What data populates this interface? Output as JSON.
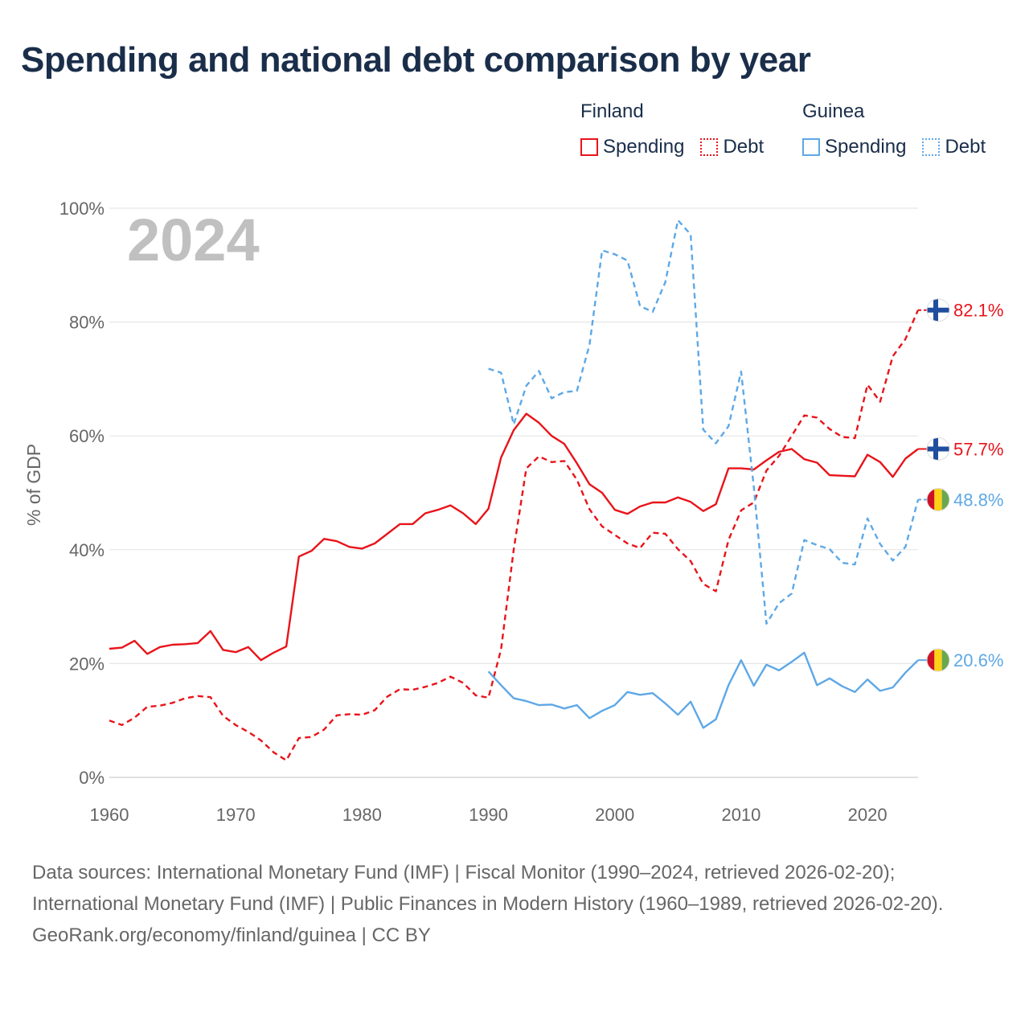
{
  "title": "Spending and national debt comparison by year",
  "colors": {
    "finland": "#e8141a",
    "guinea": "#5ea8e6",
    "title": "#1a2e4a",
    "axis_text": "#666666",
    "year_watermark": "#c0c0c0"
  },
  "legend": [
    {
      "country": "Finland",
      "color": "#e8141a",
      "items": [
        {
          "label": "Spending",
          "style": "solid"
        },
        {
          "label": "Debt",
          "style": "dotted"
        }
      ]
    },
    {
      "country": "Guinea",
      "color": "#5ea8e6",
      "items": [
        {
          "label": "Spending",
          "style": "solid"
        },
        {
          "label": "Debt",
          "style": "dotted"
        }
      ]
    }
  ],
  "chart_data": {
    "type": "line",
    "title": "Spending and national debt comparison by year",
    "current_year_label": "2024",
    "ylabel": "% of GDP",
    "xlabel": "",
    "xlim": [
      1960,
      2024
    ],
    "ylim": [
      0,
      100
    ],
    "x_ticks": [
      1960,
      1970,
      1980,
      1990,
      2000,
      2010,
      2020
    ],
    "y_ticks": [
      0,
      20,
      40,
      60,
      80,
      100
    ],
    "y_tick_labels": [
      "0%",
      "20%",
      "40%",
      "60%",
      "80%",
      "100%"
    ],
    "series": [
      {
        "name": "Finland Spending",
        "country": "Finland",
        "flag": "finland",
        "color": "#e8141a",
        "dash": false,
        "end_label": "57.7%",
        "start_year": 1960,
        "values": [
          22.6,
          22.8,
          24.0,
          21.7,
          22.9,
          23.3,
          23.4,
          23.6,
          25.7,
          22.4,
          22.0,
          22.9,
          20.6,
          21.9,
          23.0,
          38.8,
          39.8,
          41.9,
          41.5,
          40.5,
          40.2,
          41.1,
          42.8,
          44.5,
          44.5,
          46.4,
          47.0,
          47.8,
          46.4,
          44.5,
          47.2,
          56.2,
          61.0,
          63.9,
          62.3,
          60.0,
          58.6,
          55.2,
          51.5,
          50.0,
          47.0,
          46.3,
          47.6,
          48.3,
          48.3,
          49.2,
          48.4,
          46.8,
          48.0,
          54.3,
          54.3,
          54.1,
          55.7,
          57.2,
          57.7,
          55.9,
          55.3,
          53.1,
          53.0,
          52.9,
          56.7,
          55.4,
          52.8,
          56.0,
          57.7
        ]
      },
      {
        "name": "Finland Debt",
        "country": "Finland",
        "flag": "finland",
        "color": "#e8141a",
        "dash": true,
        "end_label": "82.1%",
        "start_year": 1960,
        "values": [
          10.0,
          9.2,
          10.5,
          12.4,
          12.6,
          13.1,
          13.9,
          14.3,
          14.1,
          10.8,
          9.2,
          8.0,
          6.5,
          4.4,
          3.0,
          6.9,
          7.1,
          8.4,
          10.9,
          11.1,
          11.0,
          11.8,
          14.2,
          15.5,
          15.4,
          15.9,
          16.6,
          17.7,
          16.6,
          14.4,
          14.0,
          22.5,
          40.0,
          54.3,
          56.4,
          55.4,
          55.6,
          52.3,
          47.1,
          44.1,
          42.6,
          41.1,
          40.3,
          43.0,
          42.8,
          40.1,
          38.0,
          34.0,
          32.7,
          41.7,
          46.9,
          48.3,
          53.9,
          56.5,
          60.0,
          63.6,
          63.2,
          61.2,
          59.8,
          59.6,
          69.0,
          66.0,
          74.0,
          77.0,
          82.1
        ]
      },
      {
        "name": "Guinea Spending",
        "country": "Guinea",
        "flag": "guinea",
        "color": "#5ea8e6",
        "dash": false,
        "end_label": "20.6%",
        "start_year": 1990,
        "values": [
          18.6,
          16.2,
          13.9,
          13.4,
          12.7,
          12.8,
          12.1,
          12.7,
          10.4,
          11.7,
          12.7,
          15.0,
          14.5,
          14.8,
          13.0,
          11.0,
          13.3,
          8.7,
          10.2,
          16.2,
          20.6,
          16.1,
          19.8,
          18.8,
          20.3,
          21.9,
          16.2,
          17.4,
          16.0,
          15.0,
          17.2,
          15.2,
          15.8,
          18.4,
          20.6
        ]
      },
      {
        "name": "Guinea Debt",
        "country": "Guinea",
        "flag": "guinea",
        "color": "#5ea8e6",
        "dash": true,
        "end_label": "48.8%",
        "start_year": 1990,
        "values": [
          71.8,
          71.1,
          62.0,
          68.8,
          71.4,
          66.6,
          67.7,
          67.9,
          76.0,
          92.6,
          91.9,
          90.8,
          82.8,
          81.8,
          87.0,
          97.9,
          95.4,
          61.1,
          58.7,
          61.7,
          71.3,
          51.0,
          27.0,
          30.6,
          32.3,
          41.7,
          40.8,
          40.1,
          37.7,
          37.4,
          45.5,
          41.0,
          38.1,
          40.5,
          48.8
        ]
      }
    ]
  },
  "footer": {
    "sources": "Data sources: International Monetary Fund (IMF) | Fiscal Monitor (1990–2024, retrieved 2026-02-20); International Monetary Fund (IMF) | Public Finances in Modern History (1960–1989, retrieved 2026-02-20).",
    "credit": "GeoRank.org/economy/finland/guinea | CC BY"
  }
}
